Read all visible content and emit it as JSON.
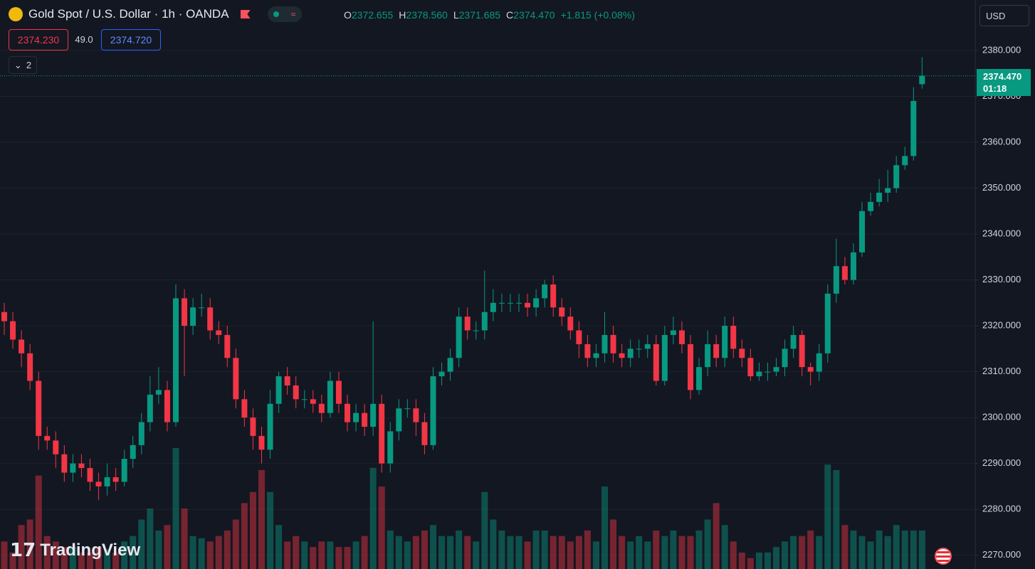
{
  "header": {
    "title": "Gold Spot / U.S. Dollar · 1h · OANDA",
    "ohlc": [
      {
        "key": "O",
        "value": "2372.655"
      },
      {
        "key": "H",
        "value": "2378.560"
      },
      {
        "key": "L",
        "value": "2371.685"
      },
      {
        "key": "C",
        "value": "2374.470"
      }
    ],
    "change": "+1.815 (+0.08%)",
    "bid": "2374.230",
    "spread": "49.0",
    "ask": "2374.720",
    "indicators": "2",
    "currency": "USD",
    "last_price": "2374.470",
    "countdown": "01:18",
    "watermark": "TradingView"
  },
  "chart_data": {
    "type": "candlestick",
    "open": [
      2323,
      2321,
      2317,
      2314,
      2308,
      2296,
      2295,
      2292,
      2288,
      2290,
      2289,
      2286,
      2285,
      2287,
      2286,
      2291,
      2294,
      2299,
      2305,
      2306,
      2299,
      2326,
      2320,
      2324,
      2324,
      2319,
      2318,
      2313,
      2304,
      2300,
      2296,
      2293,
      2303,
      2309,
      2307,
      2304,
      2304,
      2303,
      2301,
      2308,
      2303,
      2299,
      2301,
      2298,
      2303,
      2290,
      2297,
      2302,
      2302,
      2299,
      2294,
      2309,
      2310,
      2313,
      2322,
      2319,
      2319,
      2323,
      2325,
      2325,
      2325,
      2325,
      2324,
      2326,
      2329,
      2324,
      2322,
      2319,
      2316,
      2313,
      2314,
      2318,
      2314,
      2313,
      2315,
      2315,
      2316,
      2308,
      2318,
      2319,
      2316,
      2306,
      2311,
      2316,
      2313,
      2320,
      2315,
      2313,
      2309,
      2310,
      2310,
      2311,
      2315,
      2318,
      2311,
      2310,
      2314,
      2327,
      2333,
      2330,
      2336,
      2345,
      2347,
      2349,
      2350,
      2355,
      2357,
      2372.655
    ],
    "high": [
      2325,
      2323,
      2319,
      2316,
      2310,
      2298,
      2297,
      2294,
      2292,
      2292,
      2291,
      2288,
      2290,
      2289,
      2293,
      2296,
      2301,
      2309,
      2311,
      2308,
      2329,
      2328,
      2326,
      2327,
      2326,
      2321,
      2320,
      2315,
      2306,
      2302,
      2298,
      2306,
      2310,
      2311,
      2309,
      2306,
      2306,
      2305,
      2310,
      2310,
      2305,
      2303,
      2303,
      2321,
      2305,
      2299,
      2304,
      2304,
      2304,
      2301,
      2311,
      2312,
      2315,
      2324,
      2324,
      2321,
      2332,
      2328,
      2327,
      2327,
      2327,
      2327,
      2328,
      2330,
      2331,
      2326,
      2324,
      2321,
      2318,
      2316,
      2323,
      2320,
      2316,
      2317,
      2317,
      2318,
      2318,
      2320,
      2322,
      2321,
      2318,
      2313,
      2319,
      2318,
      2322,
      2322,
      2317,
      2315,
      2312,
      2312,
      2313,
      2317,
      2320,
      2319,
      2312,
      2316,
      2329,
      2339,
      2335,
      2338,
      2347,
      2349,
      2352,
      2354,
      2357,
      2359,
      2372,
      2378.56
    ],
    "low": [
      2318,
      2315,
      2311,
      2306,
      2293,
      2293,
      2289,
      2286,
      2286,
      2287,
      2284,
      2282,
      2283,
      2284,
      2285,
      2289,
      2292,
      2297,
      2303,
      2297,
      2298,
      2309,
      2318,
      2322,
      2317,
      2316,
      2311,
      2302,
      2298,
      2293,
      2290,
      2291,
      2301,
      2305,
      2302,
      2302,
      2301,
      2299,
      2300,
      2301,
      2297,
      2297,
      2296,
      2296,
      2288,
      2288,
      2295,
      2300,
      2296,
      2292,
      2293,
      2307,
      2308,
      2311,
      2317,
      2317,
      2317,
      2321,
      2323,
      2323,
      2323,
      2322,
      2322,
      2324,
      2322,
      2320,
      2317,
      2313,
      2311,
      2311,
      2312,
      2312,
      2311,
      2311,
      2313,
      2313,
      2307,
      2307,
      2316,
      2314,
      2304,
      2305,
      2309,
      2311,
      2311,
      2313,
      2311,
      2308,
      2308,
      2308,
      2309,
      2309,
      2313,
      2309,
      2307,
      2308,
      2312,
      2325,
      2329,
      2329,
      2335,
      2344,
      2346,
      2347,
      2349,
      2354,
      2356,
      2371.685
    ],
    "close": [
      2321,
      2317,
      2314,
      2308,
      2296,
      2295,
      2292,
      2288,
      2290,
      2289,
      2286,
      2285,
      2287,
      2286,
      2291,
      2294,
      2299,
      2305,
      2306,
      2299,
      2326,
      2320,
      2324,
      2324,
      2319,
      2318,
      2313,
      2304,
      2300,
      2296,
      2293,
      2303,
      2309,
      2307,
      2304,
      2304,
      2303,
      2301,
      2308,
      2303,
      2299,
      2301,
      2298,
      2303,
      2290,
      2297,
      2302,
      2302,
      2299,
      2294,
      2309,
      2310,
      2313,
      2322,
      2319,
      2319,
      2323,
      2325,
      2325,
      2325,
      2325,
      2324,
      2326,
      2329,
      2324,
      2322,
      2319,
      2316,
      2313,
      2314,
      2318,
      2314,
      2313,
      2315,
      2315,
      2316,
      2308,
      2318,
      2319,
      2316,
      2306,
      2311,
      2316,
      2313,
      2320,
      2315,
      2313,
      2309,
      2310,
      2310,
      2311,
      2315,
      2318,
      2311,
      2310,
      2314,
      2327,
      2333,
      2330,
      2336,
      2345,
      2347,
      2349,
      2350,
      2355,
      2357,
      2369,
      2374.47
    ],
    "volume": [
      25,
      15,
      40,
      45,
      85,
      30,
      25,
      20,
      20,
      15,
      15,
      20,
      18,
      15,
      25,
      30,
      45,
      55,
      35,
      40,
      110,
      55,
      30,
      28,
      25,
      30,
      35,
      45,
      60,
      70,
      90,
      70,
      40,
      25,
      30,
      25,
      20,
      25,
      25,
      20,
      20,
      25,
      30,
      92,
      75,
      35,
      30,
      25,
      30,
      35,
      40,
      30,
      30,
      35,
      30,
      25,
      70,
      45,
      35,
      30,
      30,
      25,
      35,
      35,
      30,
      30,
      25,
      30,
      35,
      25,
      75,
      45,
      30,
      25,
      30,
      25,
      35,
      30,
      35,
      30,
      30,
      35,
      45,
      60,
      40,
      25,
      15,
      10,
      15,
      15,
      20,
      25,
      30,
      30,
      35,
      30,
      95,
      90,
      40,
      35,
      30,
      25,
      35,
      30,
      40,
      35,
      35,
      35
    ],
    "up_color": "#089981",
    "down_color": "#f23645",
    "ylim": [
      2267,
      2391
    ],
    "yticks": [
      {
        "value": 2270,
        "label": "2270.000"
      },
      {
        "value": 2280,
        "label": "2280.000"
      },
      {
        "value": 2290,
        "label": "2290.000"
      },
      {
        "value": 2300,
        "label": "2300.000"
      },
      {
        "value": 2310,
        "label": "2310.000"
      },
      {
        "value": 2320,
        "label": "2320.000"
      },
      {
        "value": 2330,
        "label": "2330.000"
      },
      {
        "value": 2340,
        "label": "2340.000"
      },
      {
        "value": 2350,
        "label": "2350.000"
      },
      {
        "value": 2360,
        "label": "2360.000"
      },
      {
        "value": 2370,
        "label": "2370.000"
      },
      {
        "value": 2380,
        "label": "2380.000"
      }
    ],
    "grid": true
  }
}
